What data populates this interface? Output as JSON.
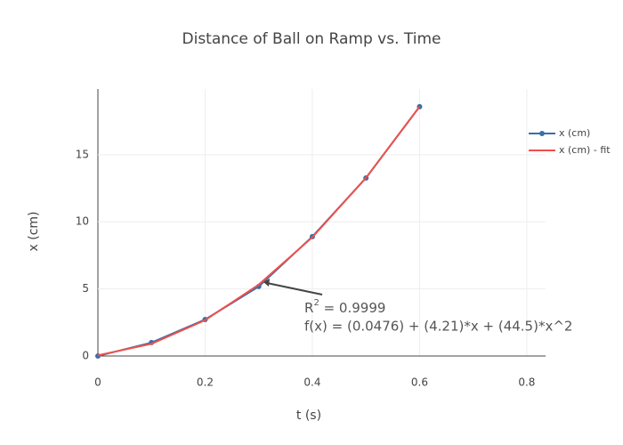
{
  "chart_data": {
    "type": "line",
    "title": "Distance of Ball on Ramp vs. Time",
    "x_label": "t (s)",
    "y_label": "x (cm)",
    "xlim": [
      0,
      0.835
    ],
    "ylim": [
      0,
      19.9
    ],
    "xticks": [
      0,
      0.2,
      0.4,
      0.6,
      0.8
    ],
    "yticks": [
      0,
      5,
      10,
      15
    ],
    "grid": true,
    "legend": "top-right",
    "series": [
      {
        "name": "x (cm)",
        "color": "#3a6fa8",
        "markers": true,
        "x": [
          0,
          0.1,
          0.2,
          0.3,
          0.4,
          0.5,
          0.6
        ],
        "values": [
          0,
          1.0,
          2.72,
          5.18,
          8.9,
          13.27,
          18.58
        ]
      },
      {
        "name": "x (cm) - fit",
        "color": "#f0504a",
        "markers": false,
        "x": [
          0,
          0.1,
          0.2,
          0.3,
          0.4,
          0.5,
          0.6
        ],
        "values": [
          0.05,
          0.91,
          2.67,
          5.32,
          8.85,
          13.28,
          18.59
        ]
      }
    ],
    "annotation": {
      "r_squared_base": "R",
      "r_squared_sup": "2",
      "r_squared_value": " = 0.9999",
      "fit_equation": "f(x) = (0.0476) + (4.21)*x + (44.5)*x^2"
    }
  }
}
